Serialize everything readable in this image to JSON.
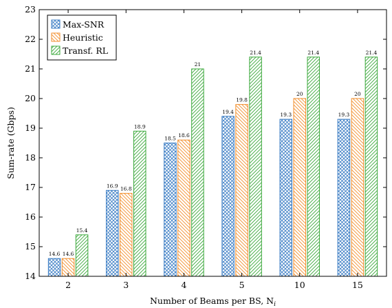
{
  "chart_data": {
    "type": "bar",
    "categories": [
      "2",
      "3",
      "4",
      "5",
      "10",
      "15"
    ],
    "series": [
      {
        "name": "Max-SNR",
        "values": [
          14.6,
          16.9,
          18.5,
          19.4,
          19.3,
          19.3
        ],
        "color": "#3b7dc4",
        "pattern": "crosshatch"
      },
      {
        "name": "Heuristic",
        "values": [
          14.6,
          16.8,
          18.6,
          19.8,
          20,
          20
        ],
        "color": "#f28e2b",
        "pattern": "backslash"
      },
      {
        "name": "Transf. RL",
        "values": [
          15.4,
          18.9,
          21,
          21.4,
          21.4,
          21.4
        ],
        "color": "#3aa83a",
        "pattern": "slash"
      }
    ],
    "value_labels": [
      [
        "14.6",
        "16.9",
        "18.5",
        "19.4",
        "19.3",
        "19.3"
      ],
      [
        "14.6",
        "16.8",
        "18.6",
        "19.8",
        "20",
        "20"
      ],
      [
        "15.4",
        "18.9",
        "21",
        "21.4",
        "21.4",
        "21.4"
      ]
    ],
    "ylim": [
      14,
      23
    ],
    "yticks": [
      14,
      15,
      16,
      17,
      18,
      19,
      20,
      21,
      22,
      23
    ],
    "xlabel": "Number of Beams per BS, N",
    "xlabel_subscript": "i",
    "ylabel": "Sum-rate (Gbps)",
    "legend_position": "top-left",
    "grid": false
  }
}
